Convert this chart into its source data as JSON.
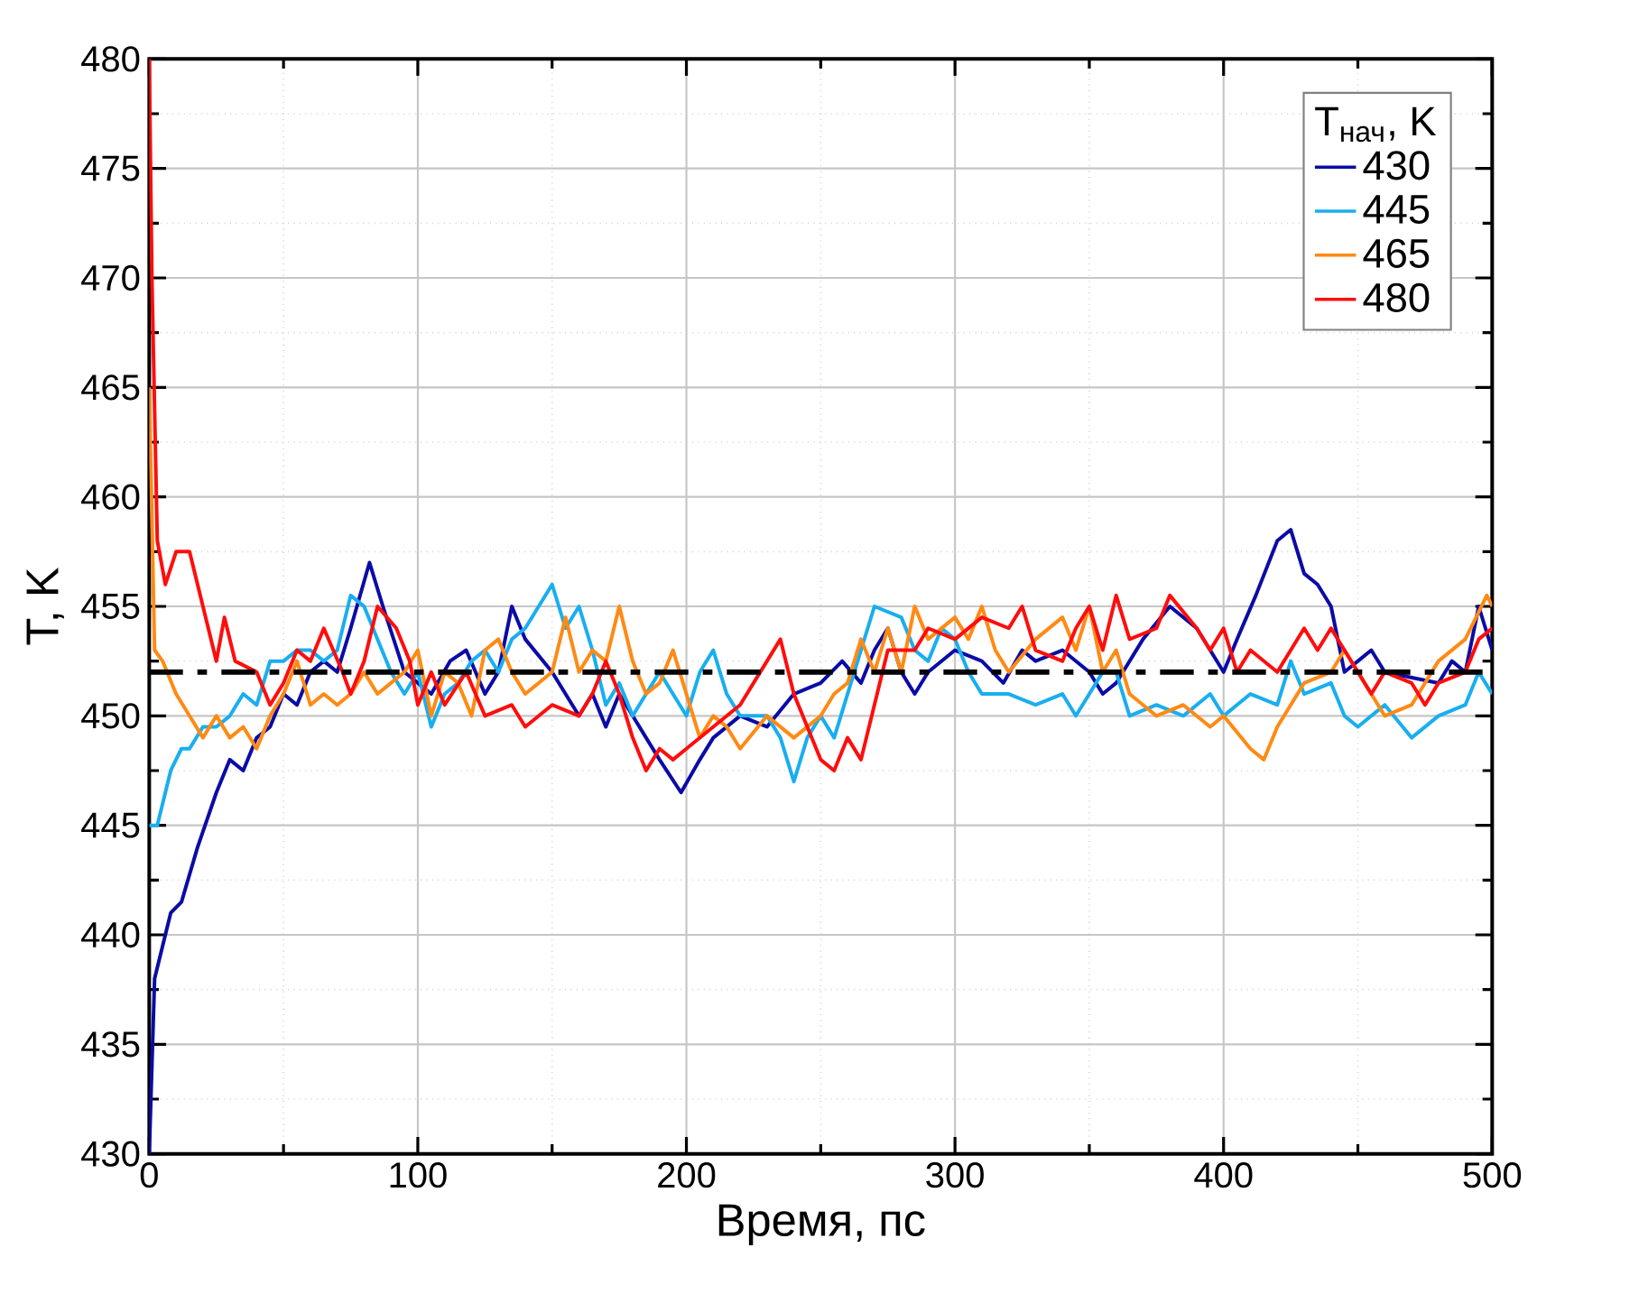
{
  "chart_data": {
    "type": "line",
    "xlabel": "Время, пс",
    "ylabel": "T, K",
    "legend_title": "T$_{нач}$, K",
    "xlim": [
      0,
      500
    ],
    "ylim": [
      430,
      480
    ],
    "xticks": [
      0,
      100,
      200,
      300,
      400,
      500
    ],
    "yticks": [
      430,
      435,
      440,
      445,
      450,
      455,
      460,
      465,
      470,
      475,
      480
    ],
    "grid": true,
    "legend": "top right",
    "line_style": "solid",
    "ref_lines": [
      {
        "axis": "y",
        "value": 452,
        "color": "#000000",
        "line_style": "dashdot"
      }
    ],
    "series": [
      {
        "name": "430",
        "color": "#0b0ba6",
        "x": [
          0,
          2,
          8,
          12,
          18,
          25,
          30,
          35,
          40,
          45,
          50,
          55,
          60,
          65,
          70,
          75,
          82,
          87,
          95,
          100,
          105,
          112,
          118,
          125,
          130,
          135,
          140,
          150,
          160,
          165,
          170,
          175,
          180,
          185,
          190,
          198,
          205,
          210,
          220,
          230,
          240,
          250,
          258,
          265,
          270,
          275,
          280,
          285,
          290,
          300,
          310,
          318,
          325,
          330,
          340,
          350,
          355,
          360,
          370,
          380,
          390,
          400,
          405,
          412,
          420,
          425,
          430,
          435,
          440,
          445,
          450,
          455,
          460,
          470,
          475,
          480,
          485,
          490,
          495,
          500
        ],
        "values": [
          430,
          438,
          441,
          441.5,
          444,
          446.5,
          448,
          447.5,
          449,
          449.5,
          451,
          450.5,
          452,
          452.5,
          452,
          454,
          457,
          455,
          452,
          451.5,
          451,
          452.5,
          453,
          451,
          452,
          455,
          453.5,
          452,
          450,
          451,
          449.5,
          451,
          450,
          449,
          448,
          446.5,
          448,
          449,
          450,
          449.5,
          451,
          451.5,
          452.5,
          451.5,
          453,
          454,
          452,
          451,
          452,
          453,
          452.5,
          451.5,
          453,
          452.5,
          453,
          452,
          451,
          451.5,
          453.5,
          455,
          454,
          452,
          453.5,
          455.5,
          458,
          458.5,
          456.5,
          456,
          455,
          452,
          452.5,
          453,
          452,
          null,
          null,
          451.5,
          452.5,
          452,
          455,
          453
        ]
      },
      {
        "name": "445",
        "color": "#19aef0",
        "x": [
          0,
          3,
          8,
          12,
          15,
          20,
          25,
          30,
          35,
          40,
          45,
          50,
          55,
          60,
          65,
          70,
          75,
          80,
          85,
          90,
          95,
          100,
          105,
          110,
          115,
          120,
          125,
          130,
          135,
          140,
          145,
          150,
          155,
          160,
          165,
          170,
          175,
          180,
          185,
          190,
          195,
          200,
          205,
          210,
          215,
          220,
          230,
          235,
          240,
          245,
          250,
          255,
          260,
          265,
          270,
          280,
          285,
          290,
          295,
          300,
          305,
          310,
          320,
          330,
          340,
          345,
          355,
          360,
          365,
          375,
          385,
          395,
          400,
          410,
          420,
          425,
          430,
          440,
          445,
          450,
          460,
          470,
          480,
          490,
          495,
          500
        ],
        "values": [
          445,
          445,
          447.5,
          448.5,
          448.5,
          449.5,
          449.5,
          450,
          451,
          450.5,
          452.5,
          452.5,
          453,
          453,
          452.5,
          453,
          455.5,
          455,
          453.5,
          452,
          451,
          452,
          449.5,
          451,
          451.5,
          452.5,
          453,
          452,
          453.5,
          454,
          455,
          456,
          454,
          455,
          453,
          450.5,
          451.5,
          450,
          451,
          452,
          451,
          450,
          452,
          453,
          451,
          450,
          450,
          449,
          447,
          449,
          450,
          449,
          451,
          453,
          455,
          454.5,
          453,
          452.5,
          454,
          453.5,
          452,
          451,
          451,
          450.5,
          451,
          450,
          452,
          452,
          450,
          450.5,
          450,
          451,
          450,
          451,
          450.5,
          452.5,
          451,
          451.5,
          450,
          449.5,
          450.5,
          449,
          450,
          450.5,
          452,
          451
        ]
      },
      {
        "name": "465",
        "color": "#ff8a14",
        "x": [
          0,
          2,
          5,
          10,
          15,
          20,
          25,
          30,
          35,
          40,
          45,
          50,
          55,
          60,
          65,
          70,
          75,
          80,
          85,
          90,
          95,
          100,
          105,
          110,
          115,
          120,
          125,
          130,
          135,
          140,
          150,
          155,
          160,
          165,
          170,
          175,
          180,
          185,
          190,
          195,
          200,
          205,
          210,
          215,
          220,
          230,
          240,
          250,
          255,
          260,
          265,
          270,
          275,
          280,
          285,
          290,
          300,
          305,
          310,
          315,
          320,
          330,
          340,
          345,
          350,
          355,
          360,
          365,
          375,
          385,
          395,
          400,
          410,
          415,
          420,
          430,
          440,
          445,
          450,
          455,
          460,
          470,
          480,
          490,
          498,
          500
        ],
        "values": [
          465,
          453,
          452.5,
          451,
          450,
          449,
          450,
          449,
          449.5,
          448.5,
          450,
          451,
          452.5,
          450.5,
          451,
          450.5,
          451,
          452,
          451,
          451.5,
          452,
          453,
          450,
          452,
          451.5,
          450,
          453,
          453.5,
          452,
          451,
          452,
          454.5,
          452,
          453,
          452.5,
          455,
          452.5,
          451,
          451.5,
          453,
          451,
          449,
          450,
          449.5,
          448.5,
          450,
          449,
          450,
          451,
          451.5,
          453.5,
          452,
          454,
          452,
          455,
          453.5,
          454.5,
          453.5,
          455,
          453,
          452,
          453.5,
          454.5,
          453,
          455,
          452,
          453,
          451,
          450,
          450.5,
          449.5,
          450,
          448.5,
          448,
          449.5,
          451.5,
          452,
          453,
          452,
          451,
          450,
          450.5,
          452.5,
          453.5,
          455.5,
          455
        ]
      },
      {
        "name": "480",
        "color": "#ff0d0d",
        "x": [
          0,
          1,
          3,
          6,
          10,
          15,
          20,
          25,
          28,
          32,
          40,
          45,
          50,
          55,
          60,
          65,
          72,
          75,
          80,
          85,
          92,
          97,
          100,
          105,
          110,
          118,
          125,
          135,
          140,
          150,
          160,
          165,
          170,
          175,
          180,
          185,
          190,
          195,
          200,
          210,
          220,
          230,
          235,
          240,
          245,
          250,
          255,
          260,
          265,
          270,
          275,
          285,
          290,
          300,
          310,
          320,
          325,
          330,
          340,
          345,
          350,
          355,
          360,
          365,
          375,
          380,
          390,
          395,
          400,
          405,
          410,
          420,
          430,
          435,
          440,
          450,
          455,
          460,
          470,
          475,
          480,
          490,
          495,
          500
        ],
        "values": [
          480,
          470,
          458,
          456,
          457.5,
          457.5,
          455,
          452.5,
          454.5,
          452.5,
          452,
          450.5,
          451.5,
          453,
          452.5,
          454,
          452,
          451,
          452.5,
          455,
          454,
          452.5,
          450.5,
          452,
          450.5,
          452,
          450,
          450.5,
          449.5,
          450.5,
          450,
          451,
          452.5,
          451,
          449,
          447.5,
          448.5,
          448,
          448.5,
          449.5,
          450.5,
          452.5,
          453.5,
          451,
          449.5,
          448,
          447.5,
          449,
          448,
          450.5,
          453,
          453,
          454,
          453.5,
          454.5,
          454,
          455,
          453,
          452.5,
          454,
          455,
          453,
          455.5,
          453.5,
          454,
          455.5,
          454,
          453,
          454,
          452,
          453,
          452,
          454,
          453,
          454,
          452,
          451,
          452,
          451.5,
          450.5,
          451.5,
          452,
          453.5,
          454
        ]
      }
    ]
  }
}
